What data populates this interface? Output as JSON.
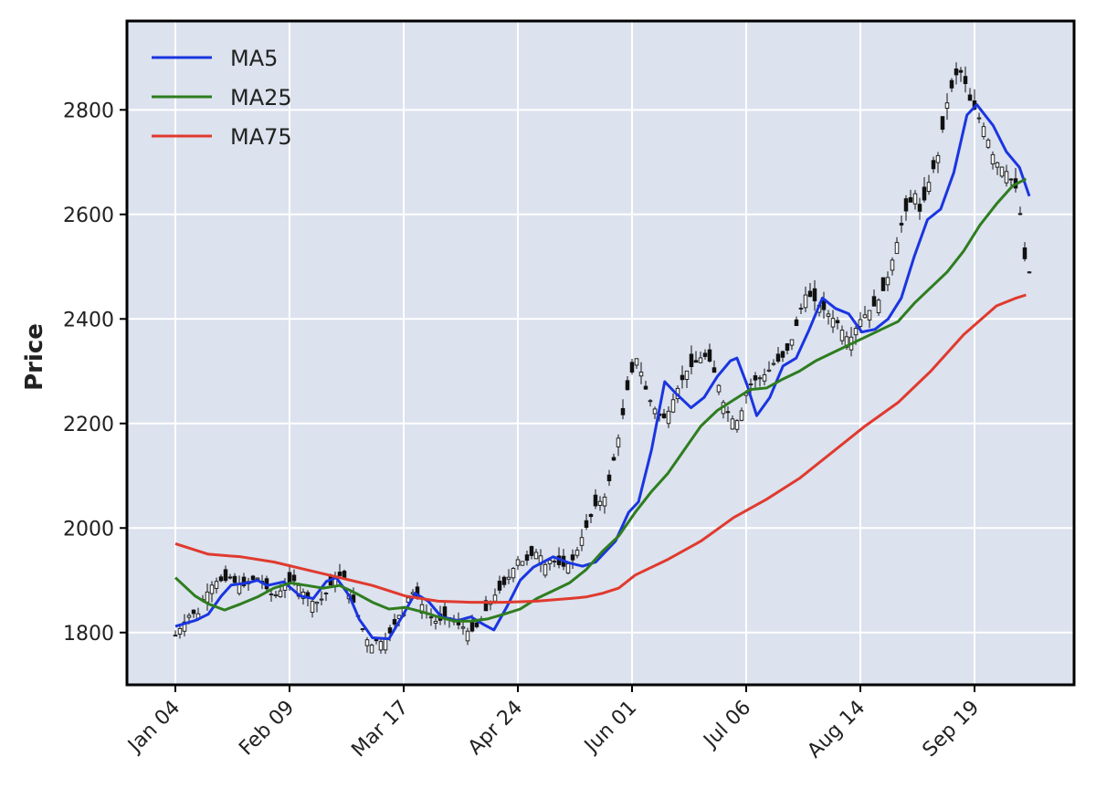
{
  "chart_data": {
    "type": "line",
    "ylabel": "Price",
    "ylim": [
      1700,
      2970
    ],
    "grid": true,
    "legend_position": "top-left",
    "colors": {
      "background": "#dce2ee",
      "grid": "#ffffff",
      "candle": "#111111",
      "MA5": "#1a35e0",
      "MA25": "#2e7d1f",
      "MA75": "#e03a2e"
    },
    "x_ticks": [
      "Jan 04",
      "Feb 09",
      "Mar 17",
      "Apr 24",
      "Jun 01",
      "Jul 06",
      "Aug 14",
      "Sep 19"
    ],
    "x_tick_index": [
      0,
      25,
      50,
      75,
      100,
      125,
      150,
      175
    ],
    "n_sessions": 188,
    "y_ticks": [
      1800,
      2000,
      2200,
      2400,
      2600,
      2800
    ],
    "series": [
      {
        "name": "MA5",
        "points": [
          [
            0,
            1812
          ],
          [
            6,
            1823
          ],
          [
            10,
            1835
          ],
          [
            14,
            1870
          ],
          [
            17,
            1891
          ],
          [
            22,
            1895
          ],
          [
            25,
            1900
          ],
          [
            28,
            1890
          ],
          [
            33,
            1897
          ],
          [
            38,
            1870
          ],
          [
            42,
            1865
          ],
          [
            46,
            1898
          ],
          [
            49,
            1905
          ],
          [
            53,
            1870
          ],
          [
            56,
            1825
          ],
          [
            60,
            1790
          ],
          [
            65,
            1788
          ],
          [
            69,
            1830
          ],
          [
            73,
            1875
          ],
          [
            77,
            1860
          ],
          [
            81,
            1830
          ],
          [
            86,
            1823
          ],
          [
            90,
            1830
          ],
          [
            94,
            1815
          ],
          [
            97,
            1805
          ],
          [
            101,
            1850
          ],
          [
            105,
            1900
          ],
          [
            109,
            1925
          ],
          [
            115,
            1945
          ],
          [
            120,
            1933
          ],
          [
            124,
            1927
          ],
          [
            128,
            1935
          ],
          [
            134,
            1975
          ],
          [
            138,
            2030
          ],
          [
            141,
            2050
          ],
          [
            145,
            2150
          ],
          [
            149,
            2280
          ],
          [
            152,
            2260
          ],
          [
            157,
            2230
          ],
          [
            161,
            2250
          ],
          [
            165,
            2290
          ],
          [
            169,
            2320
          ],
          [
            171,
            2325
          ],
          [
            174,
            2275
          ],
          [
            177,
            2215
          ],
          [
            181,
            2250
          ],
          [
            185,
            2310
          ],
          [
            189,
            2325
          ],
          [
            193,
            2380
          ],
          [
            197,
            2440
          ],
          [
            201,
            2420
          ],
          [
            205,
            2410
          ],
          [
            209,
            2375
          ],
          [
            213,
            2380
          ],
          [
            217,
            2400
          ],
          [
            221,
            2440
          ],
          [
            225,
            2520
          ],
          [
            229,
            2590
          ],
          [
            233,
            2610
          ],
          [
            237,
            2680
          ],
          [
            241,
            2790
          ],
          [
            244,
            2810
          ],
          [
            249,
            2770
          ],
          [
            253,
            2720
          ],
          [
            257,
            2690
          ],
          [
            260,
            2635
          ]
        ]
      },
      {
        "name": "MA25",
        "points": [
          [
            0,
            1905
          ],
          [
            6,
            1870
          ],
          [
            10,
            1855
          ],
          [
            15,
            1843
          ],
          [
            20,
            1855
          ],
          [
            25,
            1868
          ],
          [
            30,
            1885
          ],
          [
            35,
            1895
          ],
          [
            40,
            1890
          ],
          [
            45,
            1885
          ],
          [
            50,
            1890
          ],
          [
            55,
            1875
          ],
          [
            60,
            1858
          ],
          [
            65,
            1845
          ],
          [
            70,
            1848
          ],
          [
            75,
            1840
          ],
          [
            80,
            1830
          ],
          [
            85,
            1822
          ],
          [
            90,
            1822
          ],
          [
            95,
            1826
          ],
          [
            100,
            1835
          ],
          [
            105,
            1845
          ],
          [
            110,
            1865
          ],
          [
            115,
            1880
          ],
          [
            120,
            1895
          ],
          [
            125,
            1920
          ],
          [
            130,
            1955
          ],
          [
            135,
            1985
          ],
          [
            140,
            2030
          ],
          [
            145,
            2070
          ],
          [
            150,
            2105
          ],
          [
            155,
            2150
          ],
          [
            160,
            2195
          ],
          [
            165,
            2225
          ],
          [
            170,
            2245
          ],
          [
            175,
            2265
          ],
          [
            180,
            2268
          ],
          [
            185,
            2285
          ],
          [
            190,
            2300
          ],
          [
            195,
            2320
          ],
          [
            200,
            2335
          ],
          [
            205,
            2350
          ],
          [
            210,
            2365
          ],
          [
            215,
            2380
          ],
          [
            220,
            2395
          ],
          [
            225,
            2430
          ],
          [
            230,
            2460
          ],
          [
            235,
            2490
          ],
          [
            240,
            2530
          ],
          [
            245,
            2580
          ],
          [
            250,
            2620
          ],
          [
            255,
            2655
          ],
          [
            259,
            2668
          ]
        ]
      },
      {
        "name": "MA75",
        "points": [
          [
            0,
            1970
          ],
          [
            10,
            1950
          ],
          [
            20,
            1945
          ],
          [
            30,
            1935
          ],
          [
            40,
            1920
          ],
          [
            50,
            1905
          ],
          [
            60,
            1890
          ],
          [
            70,
            1870
          ],
          [
            80,
            1860
          ],
          [
            90,
            1858
          ],
          [
            100,
            1858
          ],
          [
            110,
            1860
          ],
          [
            120,
            1865
          ],
          [
            125,
            1868
          ],
          [
            130,
            1875
          ],
          [
            135,
            1885
          ],
          [
            140,
            1910
          ],
          [
            150,
            1940
          ],
          [
            160,
            1975
          ],
          [
            170,
            2020
          ],
          [
            180,
            2055
          ],
          [
            190,
            2095
          ],
          [
            200,
            2145
          ],
          [
            210,
            2195
          ],
          [
            220,
            2240
          ],
          [
            230,
            2300
          ],
          [
            240,
            2370
          ],
          [
            250,
            2425
          ],
          [
            256,
            2440
          ],
          [
            259,
            2446
          ]
        ]
      }
    ],
    "candles_note": "daily OHLC candlesticks",
    "candle_path": [
      1795,
      1810,
      1825,
      1840,
      1830,
      1860,
      1880,
      1895,
      1900,
      1898,
      1905,
      1895,
      1892,
      1888,
      1900,
      1905,
      1898,
      1880,
      1870,
      1875,
      1890,
      1895,
      1900,
      1885,
      1870,
      1860,
      1858,
      1865,
      1880,
      1900,
      1910,
      1905,
      1880,
      1850,
      1820,
      1790,
      1775,
      1785,
      1782,
      1790,
      1810,
      1830,
      1850,
      1870,
      1880,
      1860,
      1840,
      1830,
      1820,
      1825,
      1832,
      1822,
      1815,
      1810,
      1800,
      1805,
      1820,
      1840,
      1860,
      1875,
      1885,
      1900,
      1920,
      1940,
      1935,
      1940,
      1955,
      1950,
      1930,
      1940,
      1935,
      1925,
      1930,
      1938,
      1960,
      1990,
      2010,
      2040,
      2050,
      2060,
      2100,
      2150,
      2200,
      2260,
      2300,
      2330,
      2280,
      2250,
      2230,
      2215,
      2210,
      2230,
      2260,
      2280,
      2300,
      2310,
      2320,
      2330,
      2325,
      2300,
      2270,
      2230,
      2215,
      2200,
      2220,
      2260,
      2280,
      2285,
      2290,
      2300,
      2315,
      2320,
      2330,
      2350,
      2380,
      2420,
      2450,
      2440,
      2430,
      2420,
      2410,
      2400,
      2390,
      2370,
      2360,
      2380,
      2400,
      2410,
      2420,
      2430,
      2450,
      2480,
      2520,
      2560,
      2600,
      2620,
      2640,
      2600,
      2640,
      2680,
      2700,
      2760,
      2820,
      2850,
      2880,
      2860,
      2820,
      2800,
      2780,
      2760,
      2720,
      2700,
      2690,
      2680,
      2660,
      2640,
      2520,
      2490
    ]
  }
}
